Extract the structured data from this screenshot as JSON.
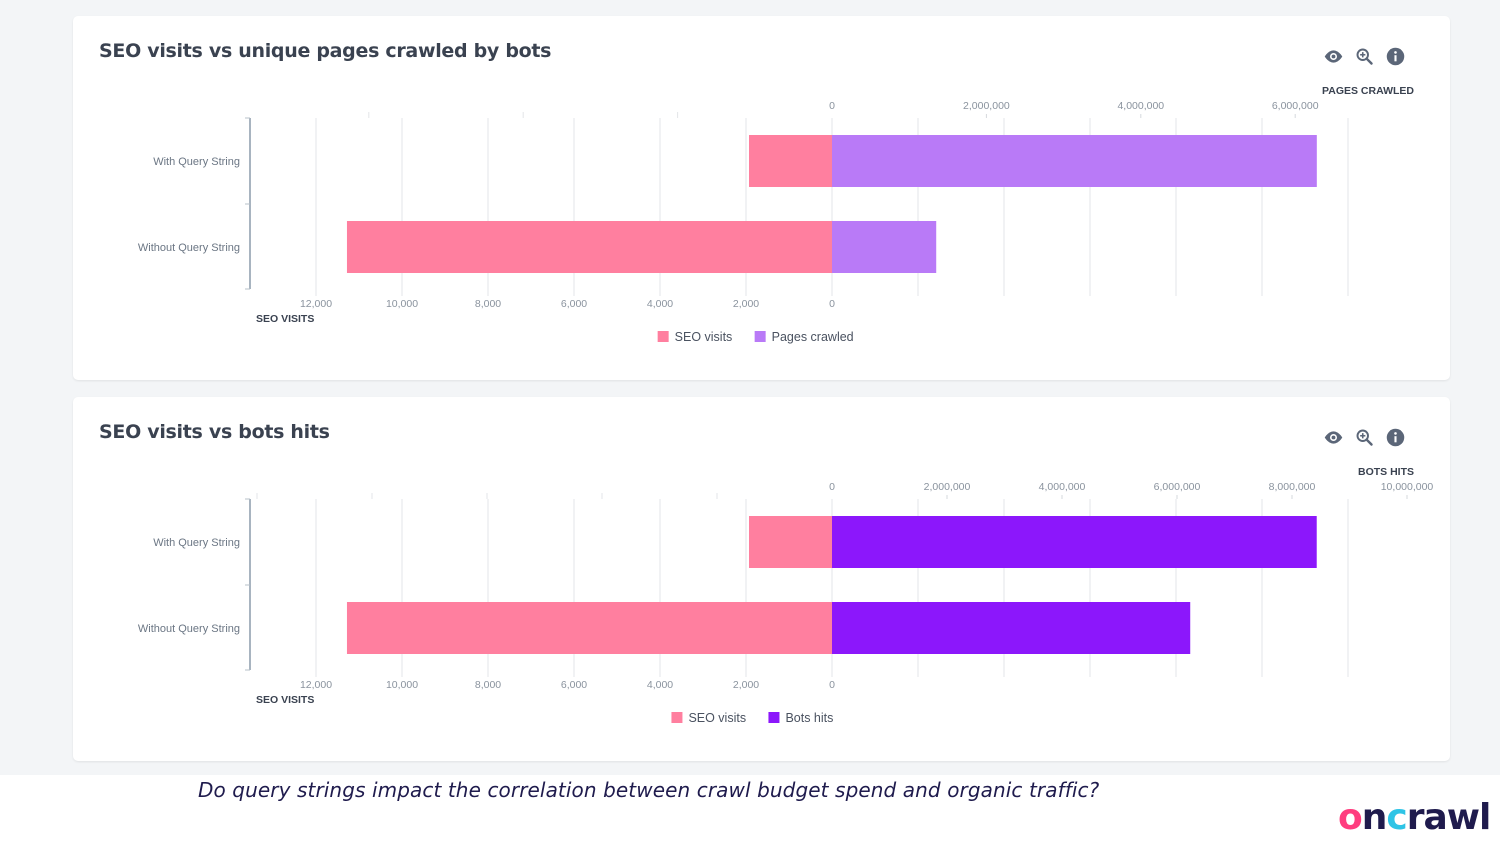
{
  "cards": [
    {
      "title": "SEO visits vs unique pages crawled by bots",
      "icons": [
        "eye-icon",
        "zoom-in-icon",
        "info-icon"
      ]
    },
    {
      "title": "SEO visits vs bots hits",
      "icons": [
        "eye-icon",
        "zoom-in-icon",
        "info-icon"
      ]
    }
  ],
  "footer": {
    "question": "Do query strings impact the correlation between crawl budget spend and organic traffic?",
    "logo": "oncrawl"
  },
  "colors": {
    "seo_visits": "#ff7f9f",
    "pages_crawled": "#b97af7",
    "bots_hits": "#8c17fb"
  },
  "chart_data": [
    {
      "type": "bar",
      "orientation": "horizontal-diverging",
      "title": "SEO visits vs unique pages crawled by bots",
      "categories": [
        "With Query String",
        "Without Query String"
      ],
      "series": [
        {
          "name": "SEO visits",
          "values": [
            1930,
            11280
          ],
          "axis": "bottom",
          "direction": "left",
          "color": "#ff7f9f"
        },
        {
          "name": "Pages crawled",
          "values": [
            6280000,
            1350000
          ],
          "axis": "top",
          "direction": "right",
          "color": "#b97af7"
        }
      ],
      "top_axis": {
        "label": "PAGES CRAWLED",
        "ticks": [
          "0",
          "2,000,000",
          "4,000,000",
          "6,000,000"
        ],
        "tick_values": [
          0,
          2000000,
          4000000,
          6000000
        ],
        "range": [
          0,
          6700000
        ]
      },
      "bottom_axis": {
        "label": "SEO VISITS",
        "ticks": [
          "12,000",
          "10,000",
          "8,000",
          "6,000",
          "4,000",
          "2,000",
          "0"
        ],
        "tick_values": [
          12000,
          10000,
          8000,
          6000,
          4000,
          2000,
          0
        ],
        "range": [
          0,
          12000
        ]
      },
      "legend": [
        "SEO visits",
        "Pages crawled"
      ],
      "legend_position": "bottom-center",
      "grid": true
    },
    {
      "type": "bar",
      "orientation": "horizontal-diverging",
      "title": "SEO visits vs bots hits",
      "categories": [
        "With Query String",
        "Without Query String"
      ],
      "series": [
        {
          "name": "SEO visits",
          "values": [
            1930,
            11280
          ],
          "axis": "bottom",
          "direction": "left",
          "color": "#ff7f9f"
        },
        {
          "name": "Bots hits",
          "values": [
            8430000,
            6230000
          ],
          "axis": "top",
          "direction": "right",
          "color": "#8c17fb"
        }
      ],
      "top_axis": {
        "label": "BOTS HITS",
        "ticks": [
          "0",
          "2,000,000",
          "4,000,000",
          "6,000,000",
          "8,000,000",
          "10,000,000"
        ],
        "tick_values": [
          0,
          2000000,
          4000000,
          6000000,
          8000000,
          10000000
        ],
        "range": [
          0,
          10000000
        ]
      },
      "bottom_axis": {
        "label": "SEO VISITS",
        "ticks": [
          "12,000",
          "10,000",
          "8,000",
          "6,000",
          "4,000",
          "2,000",
          "0"
        ],
        "tick_values": [
          12000,
          10000,
          8000,
          6000,
          4000,
          2000,
          0
        ],
        "range": [
          0,
          12000
        ]
      },
      "legend": [
        "SEO visits",
        "Bots hits"
      ],
      "legend_position": "bottom-center",
      "grid": true
    }
  ]
}
